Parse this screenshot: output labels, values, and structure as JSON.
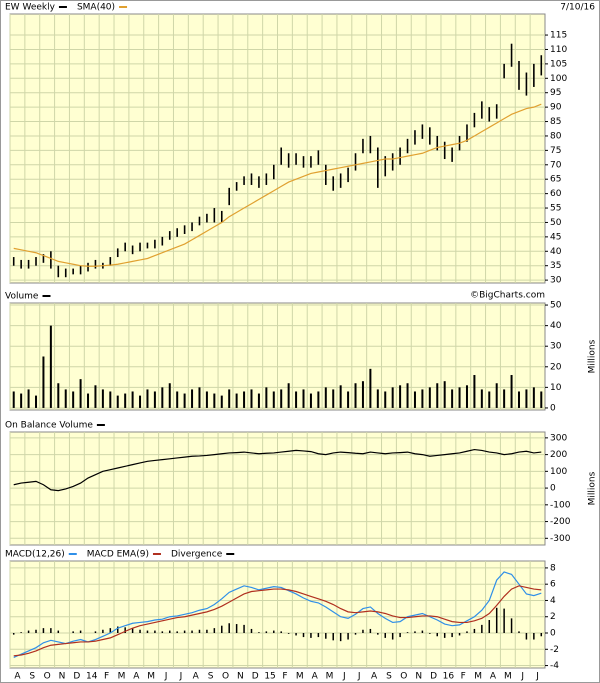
{
  "chart_data": [
    {
      "type": "ohlc",
      "date": "7/10/16",
      "credit": "©BigCharts.com",
      "ylim": [
        29,
        122.3
      ],
      "yticks": [
        30,
        35,
        40,
        45,
        50,
        55,
        60,
        65,
        70,
        75,
        80,
        85,
        90,
        95,
        100,
        105,
        110,
        115
      ],
      "grid": true,
      "series": [
        {
          "name": "EW Weekly",
          "color": "#000000",
          "high": [
            38,
            37,
            37,
            38,
            39,
            40,
            35,
            34,
            34,
            35,
            36,
            37,
            36,
            38,
            41,
            43,
            42,
            43,
            43,
            44,
            45,
            47,
            48,
            49,
            50,
            52,
            53,
            55,
            54,
            62,
            64,
            66,
            67,
            66,
            67,
            70,
            76,
            74,
            74,
            73,
            73,
            75,
            70,
            66,
            67,
            69,
            74,
            79,
            80,
            76,
            73,
            74,
            76,
            79,
            82,
            84,
            83,
            80,
            78,
            76,
            80,
            84,
            88,
            92,
            90,
            91,
            105,
            112,
            106,
            102,
            105,
            108
          ],
          "low": [
            35,
            34,
            34,
            35,
            36,
            34,
            31,
            31,
            32,
            32,
            33,
            34,
            34,
            35,
            38,
            40,
            39,
            40,
            41,
            41,
            42,
            44,
            45,
            46,
            47,
            49,
            50,
            50,
            50,
            56,
            61,
            63,
            63,
            62,
            63,
            65,
            70,
            69,
            70,
            69,
            69,
            70,
            63,
            61,
            62,
            64,
            68,
            74,
            74,
            62,
            66,
            68,
            70,
            74,
            77,
            79,
            77,
            75,
            72,
            71,
            75,
            78,
            83,
            86,
            85,
            86,
            100,
            104,
            96,
            94,
            97,
            101
          ]
        },
        {
          "name": "SMA(40)",
          "color": "#e0a030",
          "values": [
            41,
            40.5,
            40,
            39.5,
            38.5,
            37.5,
            36.5,
            36,
            35.5,
            35,
            34.8,
            34.8,
            35,
            35.2,
            35.5,
            36,
            36.5,
            37,
            37.5,
            38.5,
            39.5,
            40.5,
            41.5,
            42.5,
            44,
            45.5,
            47,
            48.5,
            50,
            52,
            53.5,
            55,
            56.5,
            58,
            59.5,
            61,
            62.5,
            64,
            65,
            66,
            67,
            67.5,
            68,
            68.5,
            69,
            69.5,
            70,
            70.5,
            71,
            71.5,
            72,
            72,
            72.5,
            73,
            73.5,
            74,
            75,
            76,
            76.5,
            77,
            77.5,
            78.5,
            80,
            81.5,
            83,
            84.5,
            86,
            87.5,
            88.5,
            89.5,
            90,
            91
          ]
        }
      ]
    },
    {
      "type": "bar",
      "ylabel": "Millions",
      "ylim": [
        -1,
        51
      ],
      "yticks": [
        0,
        10,
        20,
        30,
        40,
        50
      ],
      "grid": true,
      "series": [
        {
          "name": "Volume",
          "color": "#000000",
          "values": [
            8,
            7,
            9,
            6,
            25,
            40,
            12,
            9,
            8,
            14,
            7,
            11,
            9,
            8,
            6,
            7,
            8,
            6,
            9,
            8,
            10,
            12,
            8,
            7,
            9,
            10,
            8,
            7,
            6,
            9,
            7,
            8,
            9,
            7,
            10,
            8,
            9,
            12,
            8,
            9,
            7,
            8,
            10,
            9,
            11,
            8,
            12,
            13,
            19,
            9,
            8,
            10,
            11,
            12,
            8,
            9,
            10,
            12,
            13,
            9,
            10,
            11,
            16,
            9,
            8,
            12,
            9,
            16,
            8,
            9,
            10,
            8
          ]
        }
      ]
    },
    {
      "type": "line",
      "ylabel": "Millions",
      "ylim": [
        -340,
        335
      ],
      "yticks": [
        -300,
        -200,
        -100,
        0,
        100,
        200,
        300
      ],
      "grid": true,
      "series": [
        {
          "name": "On Balance Volume",
          "color": "#000000",
          "values": [
            20,
            30,
            35,
            40,
            20,
            -10,
            -15,
            -5,
            10,
            30,
            60,
            80,
            100,
            110,
            120,
            130,
            140,
            150,
            160,
            165,
            170,
            175,
            180,
            185,
            190,
            192,
            195,
            200,
            205,
            210,
            212,
            215,
            210,
            205,
            208,
            210,
            215,
            220,
            225,
            222,
            218,
            205,
            200,
            210,
            215,
            212,
            208,
            205,
            215,
            210,
            205,
            210,
            212,
            215,
            205,
            200,
            190,
            195,
            200,
            205,
            210,
            220,
            230,
            225,
            215,
            210,
            200,
            205,
            215,
            220,
            210,
            215
          ]
        }
      ]
    },
    {
      "type": "macd",
      "ylim": [
        -4.3,
        8.85
      ],
      "yticks": [
        -4,
        -2,
        0,
        2,
        4,
        6,
        8
      ],
      "grid": true,
      "categories": [
        "A",
        null,
        "S",
        null,
        "O",
        null,
        "N",
        null,
        "D",
        null,
        "14",
        null,
        "F",
        null,
        "M",
        null,
        "A",
        null,
        "M",
        null,
        "J",
        null,
        "J",
        null,
        "A",
        null,
        "S",
        null,
        "O",
        null,
        "N",
        null,
        "D",
        null,
        "15",
        null,
        "F",
        null,
        "M",
        null,
        "A",
        null,
        "M",
        null,
        "J",
        null,
        "J",
        null,
        "A",
        null,
        "S",
        null,
        "O",
        null,
        "N",
        null,
        "D",
        null,
        "16",
        null,
        "F",
        null,
        "M",
        null,
        "A",
        null,
        "M",
        null,
        "J",
        null,
        "J",
        null
      ],
      "series": [
        {
          "name": "MACD(12,26)",
          "color": "#2f8fe8",
          "kind": "line",
          "values": [
            -3,
            -2.6,
            -2.2,
            -1.8,
            -1.2,
            -0.9,
            -1.1,
            -1.3,
            -1.0,
            -0.8,
            -1.1,
            -0.8,
            -0.4,
            0.0,
            0.6,
            0.9,
            1.2,
            1.3,
            1.4,
            1.6,
            1.7,
            2.0,
            2.1,
            2.3,
            2.5,
            2.8,
            3.0,
            3.5,
            4.2,
            5.0,
            5.4,
            5.8,
            5.6,
            5.3,
            5.5,
            5.7,
            5.6,
            5.2,
            4.8,
            4.3,
            3.9,
            3.7,
            3.2,
            2.6,
            2.0,
            1.8,
            2.3,
            3.0,
            3.2,
            2.4,
            1.8,
            1.3,
            1.4,
            2.0,
            2.2,
            2.4,
            2.0,
            1.6,
            1.1,
            0.9,
            1.0,
            1.5,
            2.0,
            2.8,
            4.0,
            6.5,
            7.5,
            7.2,
            6.0,
            4.8,
            4.6,
            4.9
          ]
        },
        {
          "name": "MACD EMA(9)",
          "color": "#b03020",
          "kind": "line",
          "values": [
            -2.8,
            -2.7,
            -2.5,
            -2.2,
            -1.8,
            -1.5,
            -1.4,
            -1.3,
            -1.2,
            -1.1,
            -1.1,
            -1.0,
            -0.8,
            -0.6,
            -0.2,
            0.2,
            0.6,
            0.9,
            1.1,
            1.3,
            1.5,
            1.7,
            1.9,
            2.0,
            2.2,
            2.4,
            2.6,
            2.9,
            3.3,
            3.8,
            4.3,
            4.8,
            5.1,
            5.2,
            5.3,
            5.4,
            5.4,
            5.3,
            5.1,
            4.8,
            4.5,
            4.2,
            3.9,
            3.5,
            3.0,
            2.6,
            2.5,
            2.6,
            2.7,
            2.6,
            2.4,
            2.1,
            1.9,
            1.9,
            2.0,
            2.1,
            2.1,
            2.0,
            1.7,
            1.4,
            1.3,
            1.3,
            1.5,
            1.8,
            2.4,
            3.4,
            4.5,
            5.4,
            5.8,
            5.6,
            5.4,
            5.3
          ]
        },
        {
          "name": "Divergence",
          "color": "#000000",
          "kind": "bar",
          "values": [
            -0.2,
            0.1,
            0.3,
            0.4,
            0.6,
            0.6,
            0.3,
            0,
            0.2,
            0.3,
            0,
            0.2,
            0.4,
            0.6,
            0.8,
            0.7,
            0.6,
            0.4,
            0.3,
            0.3,
            0.2,
            0.3,
            0.2,
            0.3,
            0.3,
            0.4,
            0.4,
            0.6,
            0.9,
            1.2,
            1.1,
            1.0,
            0.5,
            0.1,
            0.2,
            0.3,
            0.2,
            -0.1,
            -0.3,
            -0.5,
            -0.6,
            -0.5,
            -0.7,
            -0.9,
            -1.0,
            -0.8,
            -0.2,
            0.4,
            0.5,
            -0.2,
            -0.6,
            -0.8,
            -0.5,
            0.1,
            0.2,
            0.3,
            -0.1,
            -0.4,
            -0.6,
            -0.5,
            -0.3,
            0.2,
            0.5,
            1.0,
            1.6,
            3.1,
            3.0,
            1.8,
            0.2,
            -0.8,
            -0.8,
            -0.4
          ]
        }
      ]
    }
  ]
}
